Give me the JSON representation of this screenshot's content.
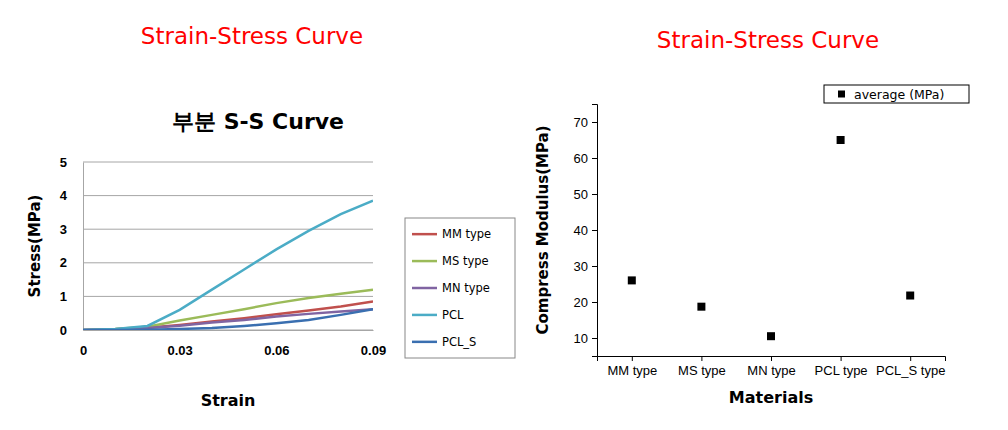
{
  "chart_data": [
    {
      "type": "line",
      "heading": "Strain-Stress Curve",
      "title": "부분 S-S Curve",
      "x_label": "Strain",
      "y_label": "Stress(MPa)",
      "x": [
        0,
        0.01,
        0.02,
        0.03,
        0.04,
        0.05,
        0.06,
        0.07,
        0.08,
        0.09
      ],
      "series": [
        {
          "name": "MM type",
          "color": "#c0504d",
          "values": [
            0,
            0.02,
            0.07,
            0.15,
            0.25,
            0.35,
            0.47,
            0.58,
            0.7,
            0.85
          ]
        },
        {
          "name": "MS type",
          "color": "#9bbb59",
          "values": [
            0,
            0.03,
            0.1,
            0.28,
            0.45,
            0.62,
            0.8,
            0.95,
            1.08,
            1.2
          ]
        },
        {
          "name": "MN type",
          "color": "#8064a2",
          "values": [
            0,
            0.02,
            0.06,
            0.13,
            0.22,
            0.3,
            0.4,
            0.48,
            0.55,
            0.62
          ]
        },
        {
          "name": "PCL",
          "color": "#4bacc6",
          "values": [
            0,
            0.03,
            0.12,
            0.6,
            1.2,
            1.8,
            2.4,
            2.95,
            3.45,
            3.85
          ]
        },
        {
          "name": "PCL_S",
          "color": "#3a6fb0",
          "values": [
            0,
            0,
            0.01,
            0.03,
            0.06,
            0.12,
            0.2,
            0.3,
            0.45,
            0.62
          ]
        }
      ],
      "xlim": [
        0,
        0.09
      ],
      "xticks": [
        0,
        0.03,
        0.06,
        0.09
      ],
      "ylim": [
        0,
        5
      ],
      "yticks": [
        0,
        1,
        2,
        3,
        4,
        5
      ],
      "grid": true,
      "legend": "right"
    },
    {
      "type": "scatter",
      "heading": "Strain-Stress Curve",
      "x_label": "Materials",
      "y_label": "Compress Modulus(MPa)",
      "categories": [
        "MM type",
        "MS type",
        "MN type",
        "PCL type",
        "PCL_S type"
      ],
      "series": [
        {
          "name": "average (MPa)",
          "color": "#000000",
          "marker": "square",
          "values": [
            26,
            18.7,
            10.5,
            65,
            21.8
          ]
        }
      ],
      "ylim": [
        5,
        75
      ],
      "yticks": [
        10,
        20,
        30,
        40,
        50,
        60,
        70
      ],
      "grid": false,
      "legend": "top-right"
    }
  ]
}
